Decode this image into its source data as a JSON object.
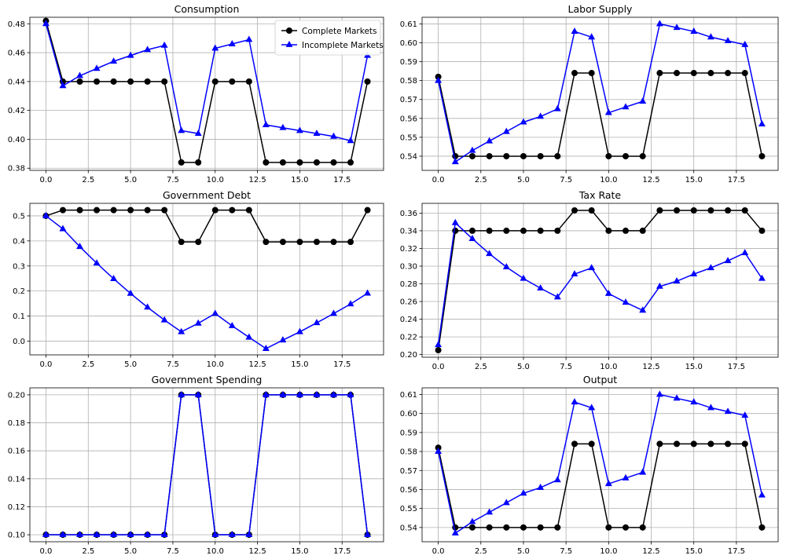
{
  "chart_data": [
    {
      "type": "line",
      "title": "Consumption",
      "x": [
        0,
        1,
        2,
        3,
        4,
        5,
        6,
        7,
        8,
        9,
        10,
        11,
        12,
        13,
        14,
        15,
        16,
        17,
        18,
        19
      ],
      "xlim": [
        -0.95,
        19.95
      ],
      "ylim": [
        0.3785,
        0.4845
      ],
      "xticks": [
        0,
        2.5,
        5,
        7.5,
        10,
        12.5,
        15,
        17.5
      ],
      "xtick_labels": [
        "0.0",
        "2.5",
        "5.0",
        "7.5",
        "10.0",
        "12.5",
        "15.0",
        "17.5"
      ],
      "yticks": [
        0.38,
        0.4,
        0.42,
        0.44,
        0.46,
        0.48
      ],
      "ytick_labels": [
        "0.38",
        "0.40",
        "0.42",
        "0.44",
        "0.46",
        "0.48"
      ],
      "grid": true,
      "legend": "top-right",
      "series": [
        {
          "name": "Complete Markets",
          "color": "#000000",
          "marker": "circle",
          "values": [
            0.482,
            0.44,
            0.44,
            0.44,
            0.44,
            0.44,
            0.44,
            0.44,
            0.384,
            0.384,
            0.44,
            0.44,
            0.44,
            0.384,
            0.384,
            0.384,
            0.384,
            0.384,
            0.384,
            0.44
          ]
        },
        {
          "name": "Incomplete Markets",
          "color": "#0000ff",
          "marker": "triangle",
          "values": [
            0.48,
            0.437,
            0.444,
            0.449,
            0.454,
            0.458,
            0.462,
            0.465,
            0.406,
            0.404,
            0.463,
            0.466,
            0.469,
            0.41,
            0.408,
            0.406,
            0.404,
            0.402,
            0.399,
            0.458
          ]
        }
      ]
    },
    {
      "type": "line",
      "title": "Labor Supply",
      "x": [
        0,
        1,
        2,
        3,
        4,
        5,
        6,
        7,
        8,
        9,
        10,
        11,
        12,
        13,
        14,
        15,
        16,
        17,
        18,
        19
      ],
      "xlim": [
        -0.95,
        19.95
      ],
      "ylim": [
        0.5325,
        0.6135
      ],
      "xticks": [
        0,
        2.5,
        5,
        7.5,
        10,
        12.5,
        15,
        17.5
      ],
      "xtick_labels": [
        "0.0",
        "2.5",
        "5.0",
        "7.5",
        "10.0",
        "12.5",
        "15.0",
        "17.5"
      ],
      "yticks": [
        0.54,
        0.55,
        0.56,
        0.57,
        0.58,
        0.59,
        0.6,
        0.61
      ],
      "ytick_labels": [
        "0.54",
        "0.55",
        "0.56",
        "0.57",
        "0.58",
        "0.59",
        "0.60",
        "0.61"
      ],
      "grid": true,
      "series": [
        {
          "color": "#000000",
          "marker": "circle",
          "values": [
            0.582,
            0.54,
            0.54,
            0.54,
            0.54,
            0.54,
            0.54,
            0.54,
            0.584,
            0.584,
            0.54,
            0.54,
            0.54,
            0.584,
            0.584,
            0.584,
            0.584,
            0.584,
            0.584,
            0.54
          ]
        },
        {
          "color": "#0000ff",
          "marker": "triangle",
          "values": [
            0.58,
            0.537,
            0.543,
            0.548,
            0.553,
            0.558,
            0.561,
            0.565,
            0.606,
            0.603,
            0.563,
            0.566,
            0.569,
            0.61,
            0.608,
            0.606,
            0.603,
            0.601,
            0.599,
            0.557
          ]
        }
      ]
    },
    {
      "type": "line",
      "title": "Government Debt",
      "x": [
        0,
        1,
        2,
        3,
        4,
        5,
        6,
        7,
        8,
        9,
        10,
        11,
        12,
        13,
        14,
        15,
        16,
        17,
        18,
        19
      ],
      "xlim": [
        -0.95,
        19.95
      ],
      "ylim": [
        -0.055,
        0.55
      ],
      "xticks": [
        0,
        2.5,
        5,
        7.5,
        10,
        12.5,
        15,
        17.5
      ],
      "xtick_labels": [
        "0.0",
        "2.5",
        "5.0",
        "7.5",
        "10.0",
        "12.5",
        "15.0",
        "17.5"
      ],
      "yticks": [
        0.0,
        0.1,
        0.2,
        0.3,
        0.4,
        0.5
      ],
      "ytick_labels": [
        "0.0",
        "0.1",
        "0.2",
        "0.3",
        "0.4",
        "0.5"
      ],
      "grid": true,
      "series": [
        {
          "color": "#000000",
          "marker": "circle",
          "values": [
            0.5,
            0.523,
            0.523,
            0.523,
            0.523,
            0.523,
            0.523,
            0.523,
            0.396,
            0.396,
            0.523,
            0.523,
            0.523,
            0.396,
            0.396,
            0.396,
            0.396,
            0.396,
            0.396,
            0.523
          ]
        },
        {
          "color": "#0000ff",
          "marker": "triangle",
          "values": [
            0.5,
            0.448,
            0.377,
            0.311,
            0.249,
            0.19,
            0.135,
            0.084,
            0.037,
            0.071,
            0.11,
            0.061,
            0.015,
            -0.03,
            0.004,
            0.037,
            0.073,
            0.11,
            0.148,
            0.191
          ]
        }
      ]
    },
    {
      "type": "line",
      "title": "Tax Rate",
      "x": [
        0,
        1,
        2,
        3,
        4,
        5,
        6,
        7,
        8,
        9,
        10,
        11,
        12,
        13,
        14,
        15,
        16,
        17,
        18,
        19
      ],
      "xlim": [
        -0.95,
        19.95
      ],
      "ylim": [
        0.197,
        0.371
      ],
      "xticks": [
        0,
        2.5,
        5,
        7.5,
        10,
        12.5,
        15,
        17.5
      ],
      "xtick_labels": [
        "0.0",
        "2.5",
        "5.0",
        "7.5",
        "10.0",
        "12.5",
        "15.0",
        "17.5"
      ],
      "yticks": [
        0.2,
        0.22,
        0.24,
        0.26,
        0.28,
        0.3,
        0.32,
        0.34,
        0.36
      ],
      "ytick_labels": [
        "0.20",
        "0.22",
        "0.24",
        "0.26",
        "0.28",
        "0.30",
        "0.32",
        "0.34",
        "0.36"
      ],
      "grid": true,
      "series": [
        {
          "color": "#000000",
          "marker": "circle",
          "values": [
            0.205,
            0.34,
            0.34,
            0.34,
            0.34,
            0.34,
            0.34,
            0.34,
            0.363,
            0.363,
            0.34,
            0.34,
            0.34,
            0.363,
            0.363,
            0.363,
            0.363,
            0.363,
            0.363,
            0.34
          ]
        },
        {
          "color": "#0000ff",
          "marker": "triangle",
          "values": [
            0.211,
            0.349,
            0.331,
            0.314,
            0.299,
            0.286,
            0.275,
            0.265,
            0.291,
            0.298,
            0.269,
            0.259,
            0.25,
            0.277,
            0.283,
            0.291,
            0.298,
            0.306,
            0.315,
            0.286
          ]
        }
      ]
    },
    {
      "type": "line",
      "title": "Government Spending",
      "x": [
        0,
        1,
        2,
        3,
        4,
        5,
        6,
        7,
        8,
        9,
        10,
        11,
        12,
        13,
        14,
        15,
        16,
        17,
        18,
        19
      ],
      "xlim": [
        -0.95,
        19.95
      ],
      "ylim": [
        0.095,
        0.205
      ],
      "xticks": [
        0,
        2.5,
        5,
        7.5,
        10,
        12.5,
        15,
        17.5
      ],
      "xtick_labels": [
        "0.0",
        "2.5",
        "5.0",
        "7.5",
        "10.0",
        "12.5",
        "15.0",
        "17.5"
      ],
      "yticks": [
        0.1,
        0.12,
        0.14,
        0.16,
        0.18,
        0.2
      ],
      "ytick_labels": [
        "0.10",
        "0.12",
        "0.14",
        "0.16",
        "0.18",
        "0.20"
      ],
      "grid": true,
      "series": [
        {
          "color": "#000000",
          "marker": "circle",
          "values": [
            0.1,
            0.1,
            0.1,
            0.1,
            0.1,
            0.1,
            0.1,
            0.1,
            0.2,
            0.2,
            0.1,
            0.1,
            0.1,
            0.2,
            0.2,
            0.2,
            0.2,
            0.2,
            0.2,
            0.1
          ]
        },
        {
          "color": "#0000ff",
          "marker": "triangle",
          "values": [
            0.1,
            0.1,
            0.1,
            0.1,
            0.1,
            0.1,
            0.1,
            0.1,
            0.2,
            0.2,
            0.1,
            0.1,
            0.1,
            0.2,
            0.2,
            0.2,
            0.2,
            0.2,
            0.2,
            0.1
          ]
        }
      ]
    },
    {
      "type": "line",
      "title": "Output",
      "x": [
        0,
        1,
        2,
        3,
        4,
        5,
        6,
        7,
        8,
        9,
        10,
        11,
        12,
        13,
        14,
        15,
        16,
        17,
        18,
        19
      ],
      "xlim": [
        -0.95,
        19.95
      ],
      "ylim": [
        0.5325,
        0.6135
      ],
      "xticks": [
        0,
        2.5,
        5,
        7.5,
        10,
        12.5,
        15,
        17.5
      ],
      "xtick_labels": [
        "0.0",
        "2.5",
        "5.0",
        "7.5",
        "10.0",
        "12.5",
        "15.0",
        "17.5"
      ],
      "yticks": [
        0.54,
        0.55,
        0.56,
        0.57,
        0.58,
        0.59,
        0.6,
        0.61
      ],
      "ytick_labels": [
        "0.54",
        "0.55",
        "0.56",
        "0.57",
        "0.58",
        "0.59",
        "0.60",
        "0.61"
      ],
      "grid": true,
      "series": [
        {
          "color": "#000000",
          "marker": "circle",
          "values": [
            0.582,
            0.54,
            0.54,
            0.54,
            0.54,
            0.54,
            0.54,
            0.54,
            0.584,
            0.584,
            0.54,
            0.54,
            0.54,
            0.584,
            0.584,
            0.584,
            0.584,
            0.584,
            0.584,
            0.54
          ]
        },
        {
          "color": "#0000ff",
          "marker": "triangle",
          "values": [
            0.58,
            0.537,
            0.543,
            0.548,
            0.553,
            0.558,
            0.561,
            0.565,
            0.606,
            0.603,
            0.563,
            0.566,
            0.569,
            0.61,
            0.608,
            0.606,
            0.603,
            0.601,
            0.599,
            0.557
          ]
        }
      ]
    }
  ]
}
